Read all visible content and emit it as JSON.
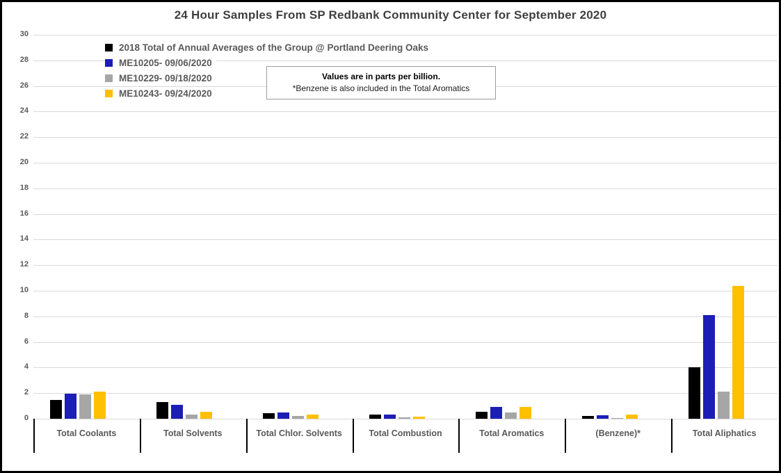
{
  "title": "24 Hour Samples From SP Redbank Community Center for September 2020",
  "note": {
    "line1": "Values are in parts per billion.",
    "line2": "*Benzene is also included in the Total Aromatics"
  },
  "colors": {
    "series_black": "#000000",
    "series_blue": "#1c1eb5",
    "series_gray": "#a6a6a6",
    "series_yellow": "#ffc000",
    "gridline": "#d9d9d9",
    "axis_text": "#595959",
    "title_text": "#3f3f3f"
  },
  "chart_data": {
    "type": "bar",
    "title": "24 Hour Samples From SP Redbank Community Center for September 2020",
    "categories": [
      "Total Coolants",
      "Total Solvents",
      "Total Chlor. Solvents",
      "Total Combustion",
      "Total Aromatics",
      "(Benzene)*",
      "Total Aliphatics"
    ],
    "series": [
      {
        "name": "2018 Total of Annual Averages of the Group @ Portland Deering Oaks",
        "color": "#000000",
        "values": [
          1.45,
          1.3,
          0.45,
          0.3,
          0.55,
          0.2,
          4.0
        ]
      },
      {
        "name": "ME10205- 09/06/2020",
        "color": "#1c1eb5",
        "values": [
          1.95,
          1.1,
          0.5,
          0.35,
          0.9,
          0.25,
          8.1
        ]
      },
      {
        "name": "ME10229- 09/18/2020",
        "color": "#a6a6a6",
        "values": [
          1.9,
          0.3,
          0.2,
          0.1,
          0.5,
          0.05,
          2.1
        ]
      },
      {
        "name": "ME10243- 09/24/2020",
        "color": "#ffc000",
        "values": [
          2.1,
          0.55,
          0.3,
          0.15,
          0.95,
          0.3,
          10.4
        ]
      }
    ],
    "xlabel": "",
    "ylabel": "",
    "ylim": [
      0,
      30
    ],
    "ytick_step": 2,
    "grid": true,
    "legend_position": "top-left-inside",
    "units": "parts per billion"
  }
}
